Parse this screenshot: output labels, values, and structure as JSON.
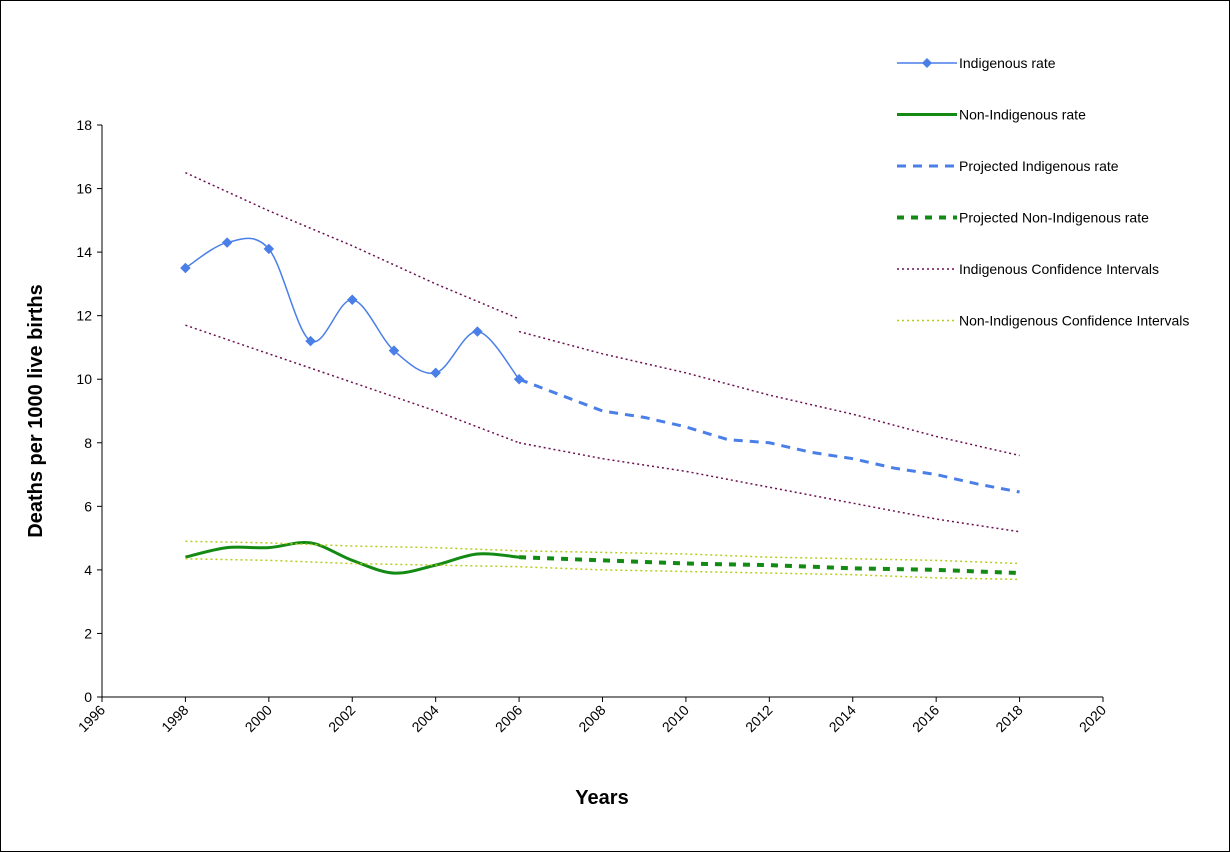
{
  "chart_data": {
    "type": "line",
    "title": "",
    "xlabel": "Years",
    "ylabel": "Deaths per 1000 live births",
    "xlim": [
      1996,
      2020
    ],
    "ylim": [
      0,
      18
    ],
    "xticks": [
      1996,
      1998,
      2000,
      2002,
      2004,
      2006,
      2008,
      2010,
      2012,
      2014,
      2016,
      2018,
      2020
    ],
    "yticks": [
      0,
      2,
      4,
      6,
      8,
      10,
      12,
      14,
      16,
      18
    ],
    "grid": false,
    "legend_position": "right",
    "series": [
      {
        "name": "Indigenous rate",
        "color": "#4a7fe8",
        "style": "solid-markers",
        "x": [
          1998,
          1999,
          2000,
          2001,
          2002,
          2003,
          2004,
          2005,
          2006
        ],
        "y": [
          13.5,
          14.3,
          14.1,
          11.2,
          12.5,
          10.9,
          10.2,
          11.5,
          10.0
        ]
      },
      {
        "name": "Non-Indigenous rate",
        "color": "#138a13",
        "style": "solid-thick",
        "x": [
          1998,
          1999,
          2000,
          2001,
          2002,
          2003,
          2004,
          2005,
          2006
        ],
        "y": [
          4.4,
          4.7,
          4.7,
          4.85,
          4.3,
          3.9,
          4.15,
          4.5,
          4.4
        ]
      },
      {
        "name": "Projected Indigenous rate",
        "color": "#4a7fe8",
        "style": "dashed",
        "x": [
          2006,
          2007,
          2008,
          2009,
          2010,
          2011,
          2012,
          2013,
          2014,
          2015,
          2016,
          2017,
          2018
        ],
        "y": [
          10.0,
          9.5,
          9.0,
          8.8,
          8.5,
          8.1,
          8.0,
          7.7,
          7.5,
          7.2,
          7.0,
          6.7,
          6.45
        ]
      },
      {
        "name": "Projected Non-Indigenous rate",
        "color": "#138a13",
        "style": "dashed-thick",
        "x": [
          2006,
          2008,
          2010,
          2012,
          2014,
          2016,
          2018
        ],
        "y": [
          4.4,
          4.3,
          4.2,
          4.15,
          4.05,
          4.0,
          3.9
        ]
      },
      {
        "name": "Indigenous Confidence Intervals",
        "color": "#6b1050",
        "style": "dotted",
        "x": [
          1998,
          2000,
          2002,
          2004,
          2006
        ],
        "y": [
          16.5,
          15.3,
          14.2,
          13.0,
          11.9
        ]
      },
      {
        "name": "",
        "color": "#6b1050",
        "style": "dotted",
        "x": [
          2006,
          2008,
          2010,
          2012,
          2014,
          2016,
          2018
        ],
        "y": [
          11.5,
          10.8,
          10.2,
          9.5,
          8.9,
          8.2,
          7.6
        ]
      },
      {
        "name": "",
        "color": "#6b1050",
        "style": "dotted",
        "x": [
          1998,
          2000,
          2002,
          2004,
          2006
        ],
        "y": [
          11.7,
          10.8,
          9.9,
          9.0,
          8.0
        ]
      },
      {
        "name": "",
        "color": "#6b1050",
        "style": "dotted",
        "x": [
          2006,
          2008,
          2010,
          2012,
          2014,
          2016,
          2018
        ],
        "y": [
          8.0,
          7.5,
          7.1,
          6.6,
          6.1,
          5.6,
          5.2
        ]
      },
      {
        "name": "Non-Indigenous Confidence Intervals",
        "color": "#b8cc1a",
        "style": "dotted",
        "x": [
          1998,
          2000,
          2002,
          2004,
          2006,
          2008,
          2010,
          2012,
          2014,
          2016,
          2018
        ],
        "y": [
          4.9,
          4.85,
          4.75,
          4.7,
          4.6,
          4.55,
          4.5,
          4.4,
          4.35,
          4.3,
          4.2
        ]
      },
      {
        "name": "",
        "color": "#b8cc1a",
        "style": "dotted",
        "x": [
          1998,
          2000,
          2002,
          2004,
          2006,
          2008,
          2010,
          2012,
          2014,
          2016,
          2018
        ],
        "y": [
          4.35,
          4.3,
          4.2,
          4.15,
          4.1,
          4.0,
          3.95,
          3.9,
          3.85,
          3.75,
          3.7
        ]
      }
    ],
    "legend": [
      {
        "label": "Indigenous rate",
        "color": "#4a7fe8",
        "style": "solid-markers"
      },
      {
        "label": "Non-Indigenous rate",
        "color": "#138a13",
        "style": "solid-thick"
      },
      {
        "label": "Projected Indigenous rate",
        "color": "#4a7fe8",
        "style": "dashed"
      },
      {
        "label": "Projected Non-Indigenous rate",
        "color": "#138a13",
        "style": "dashed-thick"
      },
      {
        "label": "Indigenous Confidence Intervals",
        "color": "#6b1050",
        "style": "dotted"
      },
      {
        "label": "Non-Indigenous Confidence Intervals",
        "color": "#b8cc1a",
        "style": "dotted"
      }
    ]
  }
}
